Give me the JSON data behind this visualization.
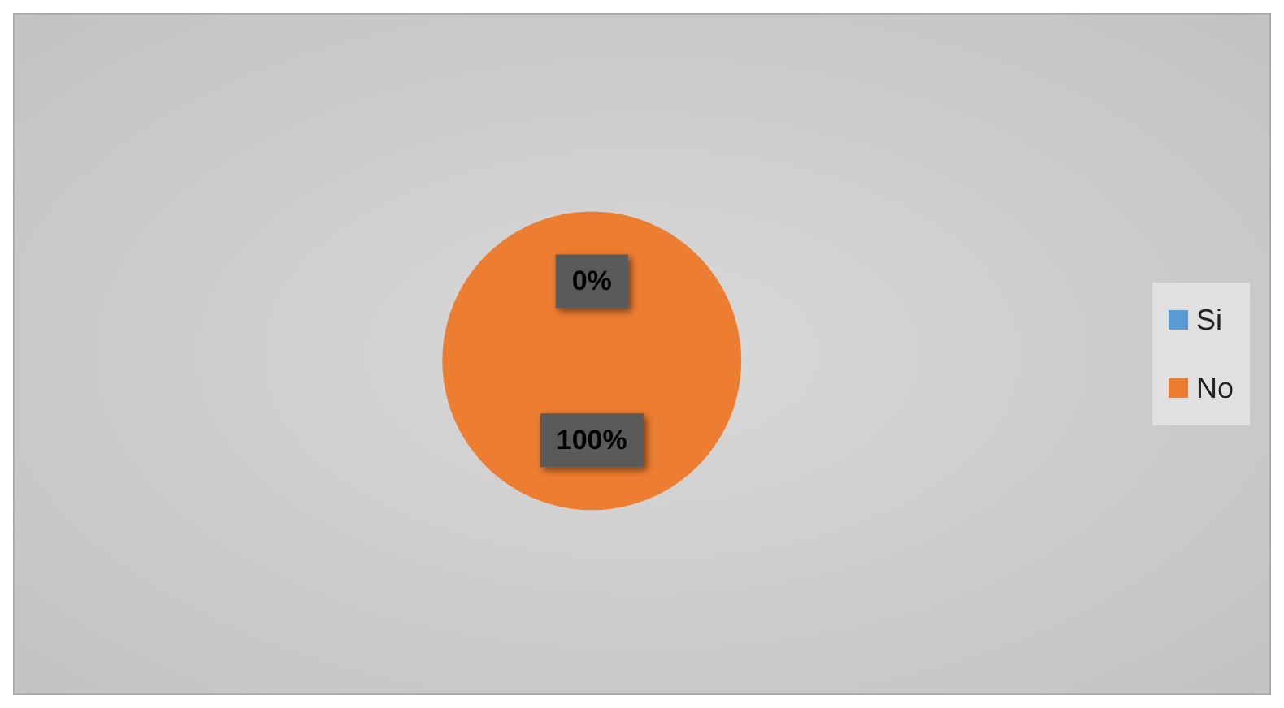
{
  "chart_data": {
    "type": "pie",
    "categories": [
      "Si",
      "No"
    ],
    "values": [
      0,
      100
    ],
    "colors": [
      "#5b9bd5",
      "#ed7d31"
    ],
    "value_labels": [
      "0%",
      "100%"
    ],
    "legend": "right"
  }
}
